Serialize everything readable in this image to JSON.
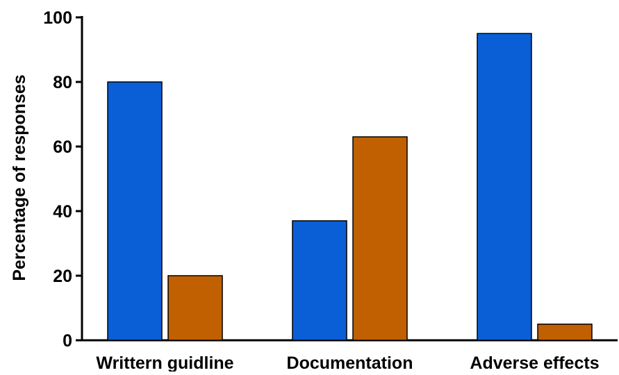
{
  "chart_data": {
    "type": "bar",
    "title": "",
    "xlabel": "",
    "ylabel": "Percentage of responses",
    "ylim": [
      0,
      100
    ],
    "yticks": [
      0,
      20,
      40,
      60,
      80,
      100
    ],
    "categories": [
      "Writtern guidline",
      "Documentation",
      "Adverse effects"
    ],
    "series": [
      {
        "values": [
          80,
          37,
          95
        ],
        "color": "#0a5fd6"
      },
      {
        "values": [
          20,
          63,
          5
        ],
        "color": "#c06000"
      }
    ],
    "grid": false,
    "legend": "none"
  }
}
